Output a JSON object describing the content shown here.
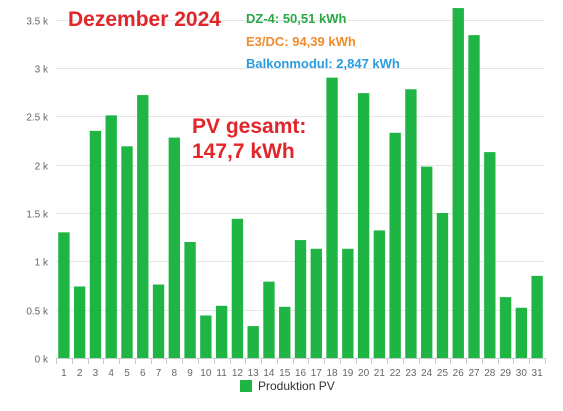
{
  "chart_data": {
    "type": "bar",
    "categories": [
      "1",
      "2",
      "3",
      "4",
      "5",
      "6",
      "7",
      "8",
      "9",
      "10",
      "11",
      "12",
      "13",
      "14",
      "15",
      "16",
      "17",
      "18",
      "19",
      "20",
      "21",
      "22",
      "23",
      "24",
      "25",
      "26",
      "27",
      "28",
      "29",
      "30",
      "31"
    ],
    "series": [
      {
        "name": "Produktion PV",
        "values": [
          1300,
          740,
          2350,
          2510,
          2190,
          2720,
          760,
          2280,
          1200,
          440,
          540,
          1440,
          330,
          790,
          530,
          1220,
          1130,
          2900,
          1130,
          2740,
          1320,
          2330,
          2780,
          1980,
          1500,
          3620,
          3340,
          2130,
          630,
          520,
          850
        ],
        "color": "#1fb544"
      }
    ],
    "ylim": [
      0,
      3600
    ],
    "yticks": [
      0,
      500,
      1000,
      1500,
      2000,
      2500,
      3000,
      3500
    ],
    "ytick_labels": [
      "0 k",
      "0.5 k",
      "1 k",
      "1.5 k",
      "2 k",
      "2.5 k",
      "3 k",
      "3.5 k"
    ],
    "title": "Dezember 2024",
    "subtitles": [
      {
        "text": "DZ-4: 50,51 kWh",
        "color": "#2aa846"
      },
      {
        "text": "E3/DC: 94,39 kWh",
        "color": "#f08c2c"
      },
      {
        "text": "Balkonmodul: 2,847 kWh",
        "color": "#2a9de0"
      }
    ],
    "annotation": {
      "line1": "PV gesamt:",
      "line2": "147,7 kWh",
      "color": "#e0262b"
    },
    "legend_position": "bottom-center",
    "grid": true,
    "xlabel": "",
    "ylabel": ""
  }
}
